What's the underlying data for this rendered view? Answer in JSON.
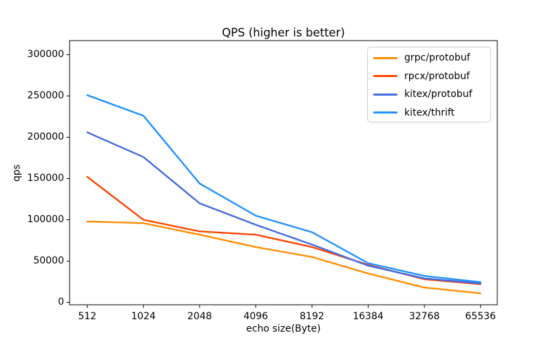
{
  "figure": {
    "title": "QPS (higher is better)"
  },
  "chart_data": {
    "type": "line",
    "title": "QPS (higher is better)",
    "xlabel": "echo size(Byte)",
    "ylabel": "qps",
    "categories": [
      "512",
      "1024",
      "2048",
      "4096",
      "8192",
      "16384",
      "32768",
      "65536"
    ],
    "y_ticks": [
      0,
      50000,
      100000,
      150000,
      200000,
      250000,
      300000
    ],
    "ylim": [
      0,
      300000
    ],
    "grid": false,
    "legend_position": "upper right",
    "series": [
      {
        "name": "grpc/protobuf",
        "color": "#ff8c00",
        "values": [
          98000,
          96000,
          82000,
          67000,
          55000,
          35000,
          18000,
          11000
        ]
      },
      {
        "name": "rpcx/protobuf",
        "color": "#ff4500",
        "values": [
          152000,
          100000,
          86000,
          82000,
          67000,
          45500,
          28000,
          22000
        ]
      },
      {
        "name": "kitex/protobuf",
        "color": "#4169e1",
        "values": [
          206000,
          176000,
          120000,
          94000,
          70000,
          44500,
          29000,
          23000
        ]
      },
      {
        "name": "kitex/thrift",
        "color": "#1e90ff",
        "values": [
          251000,
          226000,
          144000,
          105000,
          85000,
          47500,
          32000,
          24500
        ]
      }
    ]
  }
}
